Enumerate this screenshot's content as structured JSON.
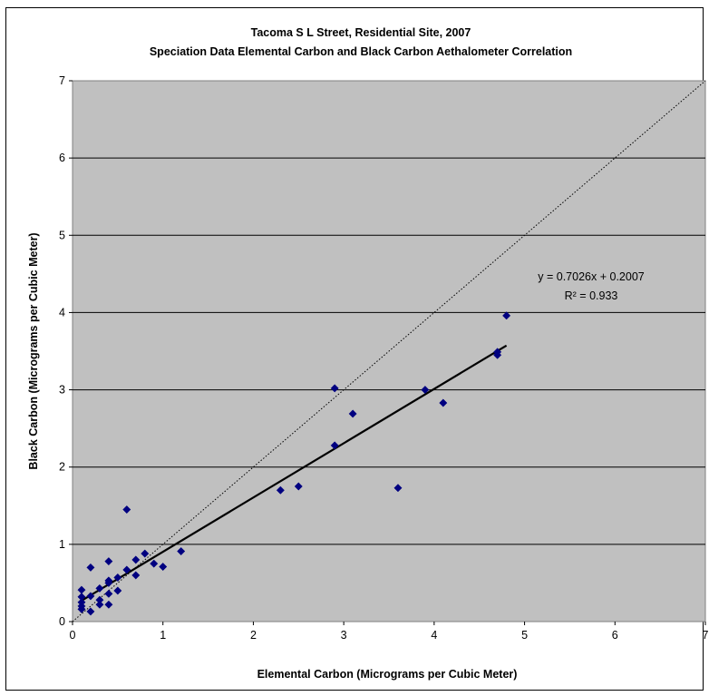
{
  "chart_data": {
    "type": "scatter",
    "title": "Tacoma S L Street, Residential Site, 2007",
    "subtitle": "Speciation Data Elemental Carbon and Black Carbon Aethalometer Correlation",
    "xlabel": "Elemental Carbon (Micrograms per Cubic Meter)",
    "ylabel": "Black Carbon (Micrograms per Cubic Meter)",
    "xlim": [
      0,
      7
    ],
    "ylim": [
      0,
      7
    ],
    "xticks": [
      "0",
      "1",
      "2",
      "3",
      "4",
      "5",
      "6",
      "7"
    ],
    "yticks": [
      "0",
      "1",
      "2",
      "3",
      "4",
      "5",
      "6",
      "7"
    ],
    "grid": "horizontal",
    "plot_background": "#c0c0c0",
    "marker_color": "#000080",
    "trendline": {
      "slope": 0.7026,
      "intercept": 0.2007,
      "x_range": [
        0.1,
        4.8
      ],
      "color": "#000000"
    },
    "reference_line": {
      "style": "dotted",
      "from": [
        0,
        0
      ],
      "to": [
        7,
        7
      ]
    },
    "equation_text": "y = 0.7026x + 0.2007",
    "r2_text": "R² = 0.933",
    "points": [
      [
        0.1,
        0.16
      ],
      [
        0.1,
        0.2
      ],
      [
        0.1,
        0.25
      ],
      [
        0.1,
        0.32
      ],
      [
        0.1,
        0.41
      ],
      [
        0.2,
        0.13
      ],
      [
        0.2,
        0.33
      ],
      [
        0.2,
        0.7
      ],
      [
        0.3,
        0.22
      ],
      [
        0.3,
        0.28
      ],
      [
        0.3,
        0.43
      ],
      [
        0.4,
        0.22
      ],
      [
        0.4,
        0.36
      ],
      [
        0.4,
        0.5
      ],
      [
        0.4,
        0.53
      ],
      [
        0.4,
        0.78
      ],
      [
        0.5,
        0.4
      ],
      [
        0.5,
        0.57
      ],
      [
        0.6,
        0.67
      ],
      [
        0.6,
        1.45
      ],
      [
        0.7,
        0.6
      ],
      [
        0.7,
        0.8
      ],
      [
        0.8,
        0.88
      ],
      [
        0.9,
        0.75
      ],
      [
        1.0,
        0.71
      ],
      [
        1.2,
        0.91
      ],
      [
        2.3,
        1.7
      ],
      [
        2.5,
        1.75
      ],
      [
        2.9,
        2.28
      ],
      [
        2.9,
        3.02
      ],
      [
        3.1,
        2.69
      ],
      [
        3.6,
        1.73
      ],
      [
        3.9,
        3.0
      ],
      [
        4.1,
        2.83
      ],
      [
        4.7,
        3.45
      ],
      [
        4.7,
        3.49
      ],
      [
        4.8,
        3.96
      ]
    ]
  }
}
